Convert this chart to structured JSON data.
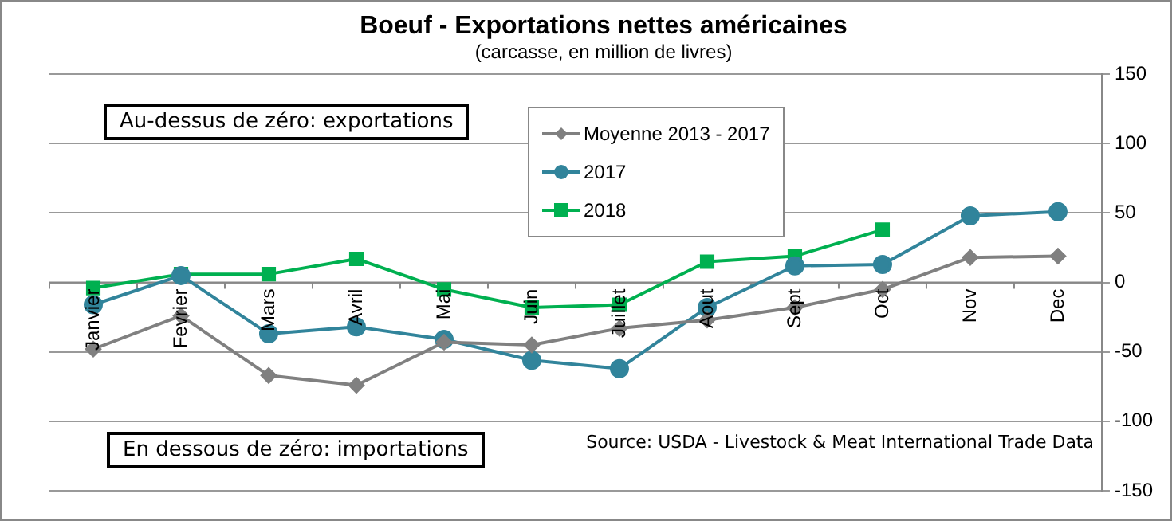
{
  "chart_data": {
    "type": "line",
    "title": "Boeuf - Exportations nettes américaines",
    "subtitle": "(carcasse, en million de livres)",
    "categories": [
      "Janvier",
      "Fevrier",
      "Mars",
      "Avril",
      "Mai",
      "Juin",
      "Juillet",
      "Aout",
      "Sept",
      "Oct",
      "Nov",
      "Dec"
    ],
    "series": [
      {
        "name": "Moyenne 2013 - 2017",
        "color": "#808080",
        "marker": "diamond",
        "values": [
          -48,
          -24,
          -67,
          -74,
          -43,
          -45,
          -33,
          -27,
          -18,
          -5,
          18,
          19
        ]
      },
      {
        "name": "2017",
        "color": "#31849b",
        "marker": "circle",
        "values": [
          -16,
          5,
          -37,
          -32,
          -41,
          -56,
          -62,
          -18,
          12,
          13,
          48,
          51
        ]
      },
      {
        "name": "2018",
        "color": "#00b050",
        "marker": "square",
        "values": [
          -4,
          6,
          6,
          17,
          -5,
          -18,
          -16,
          15,
          19,
          38,
          null,
          null
        ]
      }
    ],
    "ylim": [
      -150,
      150
    ],
    "yticks": [
      -150,
      -100,
      -50,
      0,
      50,
      100,
      150
    ],
    "grid": "y",
    "legend": "top",
    "annotations": [
      "Au-dessus de zéro: exportations",
      "En dessous de zéro: importations",
      "Source: USDA - Livestock & Meat International Trade Data"
    ]
  }
}
